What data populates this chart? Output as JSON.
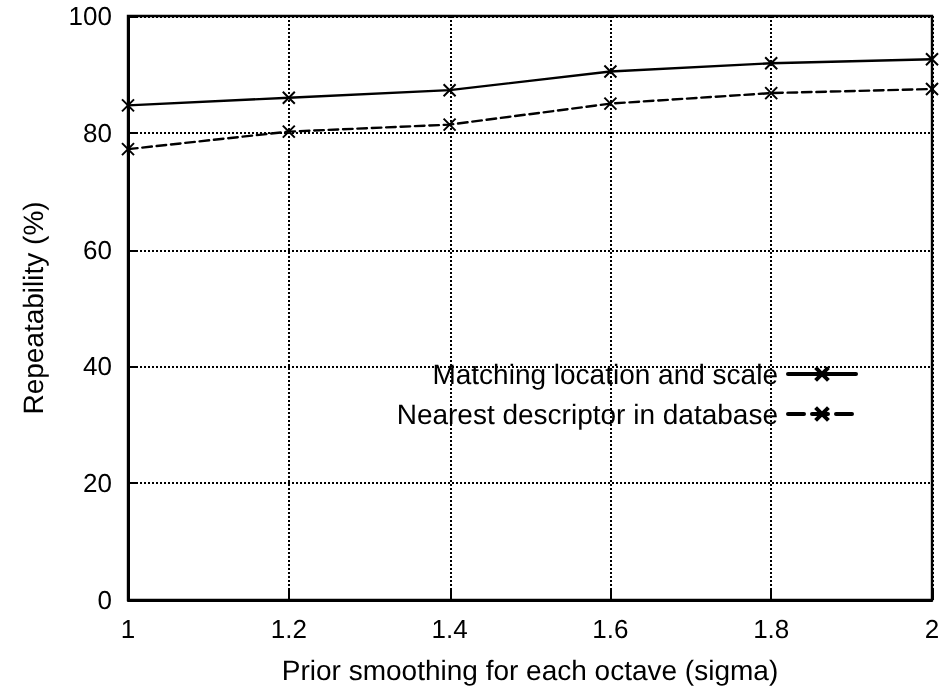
{
  "chart_data": {
    "type": "line",
    "xlabel": "Prior smoothing for each octave (sigma)",
    "ylabel": "Repeatability (%)",
    "x": [
      1,
      1.2,
      1.4,
      1.6,
      1.8,
      2
    ],
    "series": [
      {
        "name": "Matching location and scale",
        "color": "#000000",
        "line_style": "solid",
        "marker": "cross",
        "values": [
          84.7,
          86,
          87.3,
          90.5,
          91.9,
          92.6
        ]
      },
      {
        "name": "Nearest descriptor in database",
        "color": "#000000",
        "line_style": "dashed",
        "marker": "cross",
        "values": [
          77.2,
          80.2,
          81.4,
          85,
          86.8,
          87.5
        ]
      }
    ],
    "xlim": [
      1,
      2
    ],
    "xticks": [
      1,
      1.2,
      1.4,
      1.6,
      1.8,
      2
    ],
    "ylim": [
      0,
      100
    ],
    "yticks": [
      0,
      20,
      40,
      60,
      80,
      100
    ],
    "grid": true,
    "legend": "right"
  }
}
